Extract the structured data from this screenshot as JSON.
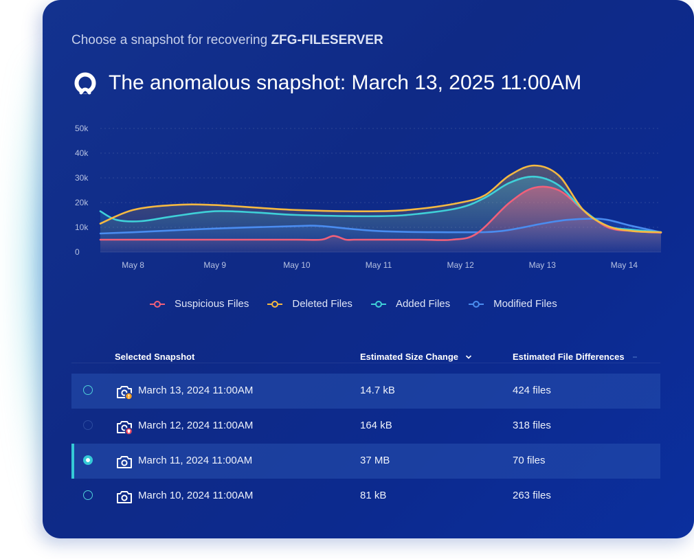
{
  "header": {
    "subtitle_prefix": "Choose a snapshot for recovering",
    "server_name": "ZFG-FILESERVER",
    "title": "The anomalous snapshot: March 13, 2025 11:00AM",
    "logo_icon": "anomaly-logo-icon"
  },
  "chart_data": {
    "type": "line",
    "title": "",
    "xlabel": "",
    "ylabel": "",
    "categories": [
      "May 8",
      "May 9",
      "May 10",
      "May 11",
      "May 12",
      "May 13",
      "May 14"
    ],
    "y_ticks": [
      "0",
      "10k",
      "20k",
      "30k",
      "40k",
      "50k"
    ],
    "ylim": [
      0,
      50000
    ],
    "x_domain": [
      7.6,
      14.45
    ],
    "grid": true,
    "legend_position": "bottom-center",
    "series": [
      {
        "name": "Suspicious Files",
        "color": "#f0607a",
        "x": [
          7.6,
          8.0,
          9.0,
          10.0,
          10.3,
          10.45,
          10.6,
          10.7,
          11.0,
          11.5,
          11.9,
          12.2,
          12.6,
          12.9,
          13.2,
          13.5,
          13.8,
          14.1,
          14.45
        ],
        "y": [
          5000,
          5000,
          5000,
          5000,
          5000,
          6500,
          5000,
          5000,
          5000,
          5000,
          5000,
          7500,
          20000,
          26000,
          25000,
          17000,
          10000,
          8500,
          7800
        ]
      },
      {
        "name": "Deleted Files",
        "color": "#f5b942",
        "x": [
          7.6,
          8.0,
          8.5,
          9.0,
          10.0,
          11.0,
          11.5,
          12.0,
          12.3,
          12.6,
          12.9,
          13.2,
          13.5,
          13.8,
          14.1,
          14.45
        ],
        "y": [
          11500,
          17000,
          19000,
          19000,
          17000,
          16500,
          17500,
          20000,
          23000,
          31000,
          35000,
          31000,
          17000,
          10500,
          8500,
          8000
        ]
      },
      {
        "name": "Added Files",
        "color": "#3fd0d8",
        "x": [
          7.6,
          7.8,
          8.1,
          8.5,
          9.0,
          9.5,
          10.0,
          11.0,
          11.5,
          12.0,
          12.3,
          12.6,
          12.9,
          13.2,
          13.5,
          13.8,
          14.1,
          14.45
        ],
        "y": [
          16500,
          13000,
          12500,
          14500,
          16500,
          16000,
          15000,
          14500,
          15500,
          18000,
          22000,
          28000,
          30500,
          27000,
          17000,
          10500,
          9000,
          8000
        ]
      },
      {
        "name": "Modified Files",
        "color": "#4a8cf0",
        "x": [
          7.6,
          8.0,
          9.0,
          10.0,
          10.3,
          11.0,
          12.0,
          12.5,
          13.0,
          13.3,
          13.6,
          13.8,
          14.1,
          14.45
        ],
        "y": [
          7500,
          8000,
          9500,
          10500,
          10500,
          8500,
          8000,
          8500,
          11500,
          13000,
          13500,
          13000,
          10500,
          8000
        ]
      }
    ]
  },
  "table": {
    "columns": [
      "Selected Snapshot",
      "Estimated Size Change",
      "Estimated File Differences"
    ],
    "sort_icon": "chevron-down-icon",
    "rows": [
      {
        "date": "March 13, 2024 11:00AM",
        "size": "14.7 kB",
        "files": "424 files",
        "status_icon": "camera-warning-icon",
        "badge_color": "#f5a020",
        "selected": false
      },
      {
        "date": "March 12, 2024 11:00AM",
        "size": "164 kB",
        "files": "318 files",
        "status_icon": "camera-threat-icon",
        "badge_color": "#f0455e",
        "selected": false
      },
      {
        "date": "March 11, 2024 11:00AM",
        "size": "37 MB",
        "files": "70 files",
        "status_icon": "camera-icon",
        "badge_color": "",
        "selected": true
      },
      {
        "date": "March 10, 2024 11:00AM",
        "size": "81 kB",
        "files": "263 files",
        "status_icon": "camera-icon",
        "badge_color": "",
        "selected": false
      }
    ]
  },
  "colors": {
    "card_bg": "#10308c",
    "accent_cyan": "#35c9d6",
    "row_highlight": "#284fa8"
  }
}
